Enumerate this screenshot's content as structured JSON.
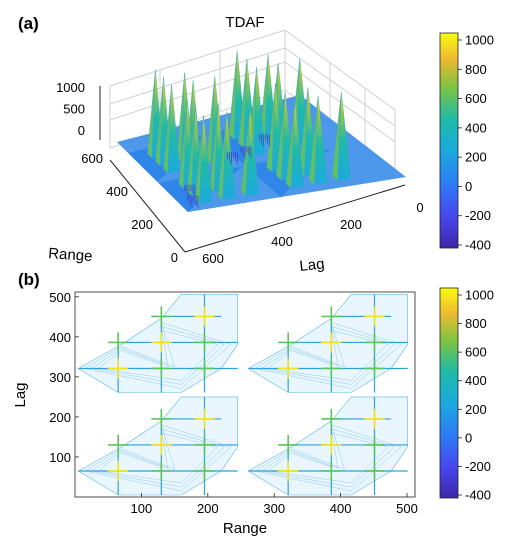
{
  "chart_data": [
    {
      "panel": "(a)",
      "type": "surface3d",
      "title": "TDAF",
      "xlabel": "Range",
      "ylabel": "Lag",
      "zticks": [
        "0",
        "500",
        "1000"
      ],
      "range_ticks": [
        "0",
        "200",
        "400",
        "600"
      ],
      "lag_ticks": [
        "0",
        "200",
        "400",
        "600"
      ],
      "xlim": [
        0,
        600
      ],
      "ylim": [
        0,
        600
      ],
      "zlim": [
        -400,
        1000
      ],
      "colorbar": {
        "min": -400,
        "max": 1000,
        "ticks": [
          "1000",
          "800",
          "600",
          "400",
          "200",
          "0",
          "-200",
          "-400"
        ]
      },
      "peaks_description_values": [
        {
          "range": 65,
          "lag": 65,
          "z": 1000
        },
        {
          "range": 195,
          "lag": 195,
          "z": 1000
        },
        {
          "range": 320,
          "lag": 320,
          "z": 1000
        },
        {
          "range": 450,
          "lag": 450,
          "z": 1000
        }
      ]
    },
    {
      "panel": "(b)",
      "type": "contour",
      "xlabel": "Range",
      "ylabel": "Lag",
      "xticks": [
        "100",
        "200",
        "300",
        "400",
        "500"
      ],
      "yticks": [
        "100",
        "200",
        "300",
        "400",
        "500"
      ],
      "xlim": [
        0,
        512
      ],
      "ylim": [
        0,
        512
      ],
      "colorbar": {
        "min": -400,
        "max": 1000,
        "ticks": [
          "1000",
          "800",
          "600",
          "400",
          "200",
          "0",
          "-200",
          "-400"
        ]
      },
      "peak_positions": [
        65,
        130,
        195
      ],
      "quadrant_offsets": [
        0,
        256
      ]
    }
  ]
}
